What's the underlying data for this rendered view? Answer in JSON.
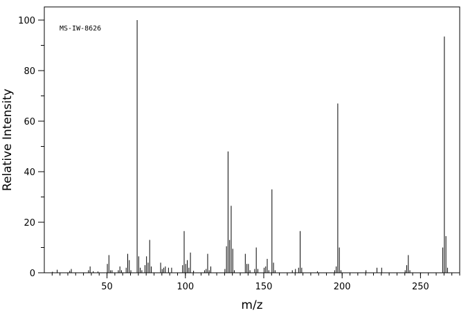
{
  "chart_data": {
    "type": "bar",
    "annotation": "MS-IW-8626",
    "xlabel": "m/z",
    "ylabel": "Relative Intensity",
    "xlim": [
      10,
      275
    ],
    "ylim": [
      0,
      100
    ],
    "x_ticks": [
      50,
      100,
      150,
      200,
      250
    ],
    "y_ticks": [
      0,
      20,
      40,
      60,
      80,
      100
    ],
    "grid": false,
    "peaks": [
      {
        "x": 15,
        "y": 0.4
      },
      {
        "x": 18,
        "y": 1.2
      },
      {
        "x": 26,
        "y": 0.8
      },
      {
        "x": 27,
        "y": 1.5
      },
      {
        "x": 38,
        "y": 1.0
      },
      {
        "x": 39,
        "y": 2.5
      },
      {
        "x": 41,
        "y": 0.6
      },
      {
        "x": 44,
        "y": 0.5
      },
      {
        "x": 50,
        "y": 3.5
      },
      {
        "x": 51,
        "y": 7.0
      },
      {
        "x": 52,
        "y": 1.0
      },
      {
        "x": 53,
        "y": 1.0
      },
      {
        "x": 57,
        "y": 1.0
      },
      {
        "x": 58,
        "y": 2.5
      },
      {
        "x": 59,
        "y": 1.0
      },
      {
        "x": 62,
        "y": 2.0
      },
      {
        "x": 63,
        "y": 7.5
      },
      {
        "x": 64,
        "y": 5.0
      },
      {
        "x": 65,
        "y": 1.0
      },
      {
        "x": 69,
        "y": 100
      },
      {
        "x": 70,
        "y": 6.5
      },
      {
        "x": 71,
        "y": 2.0
      },
      {
        "x": 72,
        "y": 1.0
      },
      {
        "x": 74,
        "y": 3.0
      },
      {
        "x": 75,
        "y": 6.5
      },
      {
        "x": 76,
        "y": 4.0
      },
      {
        "x": 77,
        "y": 13.0
      },
      {
        "x": 78,
        "y": 2.5
      },
      {
        "x": 84,
        "y": 4.0
      },
      {
        "x": 85,
        "y": 1.5
      },
      {
        "x": 86,
        "y": 2.0
      },
      {
        "x": 87,
        "y": 2.5
      },
      {
        "x": 89,
        "y": 2.0
      },
      {
        "x": 91,
        "y": 2.0
      },
      {
        "x": 98,
        "y": 3.0
      },
      {
        "x": 99,
        "y": 16.5
      },
      {
        "x": 100,
        "y": 3.5
      },
      {
        "x": 101,
        "y": 5.0
      },
      {
        "x": 102,
        "y": 2.0
      },
      {
        "x": 103,
        "y": 8.0
      },
      {
        "x": 105,
        "y": 0.8
      },
      {
        "x": 112,
        "y": 1.0
      },
      {
        "x": 113,
        "y": 1.5
      },
      {
        "x": 114,
        "y": 7.5
      },
      {
        "x": 115,
        "y": 1.0
      },
      {
        "x": 116,
        "y": 2.5
      },
      {
        "x": 125,
        "y": 1.5
      },
      {
        "x": 126,
        "y": 10.5
      },
      {
        "x": 127,
        "y": 48.0
      },
      {
        "x": 128,
        "y": 13.0
      },
      {
        "x": 129,
        "y": 26.5
      },
      {
        "x": 130,
        "y": 9.5
      },
      {
        "x": 131,
        "y": 1.0
      },
      {
        "x": 138,
        "y": 7.5
      },
      {
        "x": 139,
        "y": 3.5
      },
      {
        "x": 140,
        "y": 3.5
      },
      {
        "x": 141,
        "y": 1.0
      },
      {
        "x": 144,
        "y": 1.5
      },
      {
        "x": 145,
        "y": 10.0
      },
      {
        "x": 146,
        "y": 1.5
      },
      {
        "x": 150,
        "y": 2.0
      },
      {
        "x": 151,
        "y": 2.5
      },
      {
        "x": 152,
        "y": 5.5
      },
      {
        "x": 153,
        "y": 1.0
      },
      {
        "x": 155,
        "y": 33.0
      },
      {
        "x": 156,
        "y": 4.0
      },
      {
        "x": 157,
        "y": 1.0
      },
      {
        "x": 168,
        "y": 1.0
      },
      {
        "x": 170,
        "y": 1.5
      },
      {
        "x": 172,
        "y": 2.0
      },
      {
        "x": 173,
        "y": 16.5
      },
      {
        "x": 174,
        "y": 2.0
      },
      {
        "x": 184,
        "y": 0.6
      },
      {
        "x": 195,
        "y": 1.0
      },
      {
        "x": 196,
        "y": 2.5
      },
      {
        "x": 197,
        "y": 67.0
      },
      {
        "x": 198,
        "y": 10.0
      },
      {
        "x": 199,
        "y": 1.0
      },
      {
        "x": 215,
        "y": 1.0
      },
      {
        "x": 222,
        "y": 2.0
      },
      {
        "x": 225,
        "y": 2.0
      },
      {
        "x": 240,
        "y": 1.0
      },
      {
        "x": 241,
        "y": 3.0
      },
      {
        "x": 242,
        "y": 7.0
      },
      {
        "x": 243,
        "y": 1.0
      },
      {
        "x": 264,
        "y": 10.0
      },
      {
        "x": 265,
        "y": 93.5
      },
      {
        "x": 266,
        "y": 14.5
      },
      {
        "x": 267,
        "y": 2.0
      }
    ]
  }
}
